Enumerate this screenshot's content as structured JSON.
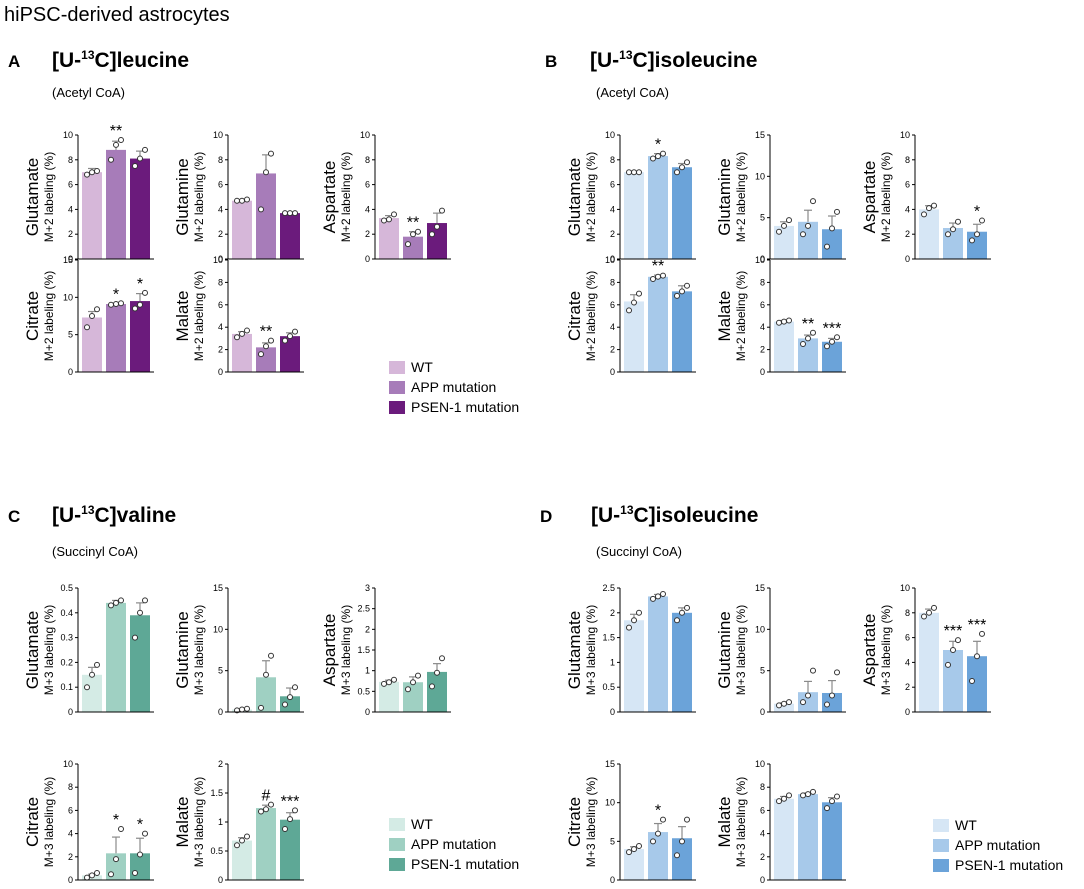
{
  "figure_title": "hiPSC-derived astrocytes",
  "groups": [
    "WT",
    "APP mutation",
    "PSEN-1 mutation"
  ],
  "palettes": {
    "purple": [
      "#d6b7d9",
      "#a77cb9",
      "#6b1b7c"
    ],
    "blue": [
      "#d6e6f5",
      "#a7c9ea",
      "#6ba3d9"
    ],
    "teal": [
      "#d4ebe5",
      "#9fd0c2",
      "#5ea896"
    ],
    "outline": "#8a8a8a"
  },
  "panels": [
    {
      "letter": "A",
      "tracer_prefix": "[U-",
      "tracer_sup": "13",
      "tracer_suffix": "C]leucine",
      "sub": "(Acetyl CoA)"
    },
    {
      "letter": "B",
      "tracer_prefix": "[U-",
      "tracer_sup": "13",
      "tracer_suffix": "C]isoleucine",
      "sub": "(Acetyl CoA)"
    },
    {
      "letter": "C",
      "tracer_prefix": "[U-",
      "tracer_sup": "13",
      "tracer_suffix": "C]valine",
      "sub": "(Succinyl CoA)"
    },
    {
      "letter": "D",
      "tracer_prefix": "[U-",
      "tracer_sup": "13",
      "tracer_suffix": "C]isoleucine",
      "sub": "(Succinyl CoA)"
    }
  ],
  "chart_data": [
    {
      "panel": "A",
      "type": "bar",
      "title": "Glutamate",
      "ylabel": "M+2 labeling (%)",
      "palette": "purple",
      "categories": [
        "WT",
        "APP mutation",
        "PSEN-1 mutation"
      ],
      "ylim": [
        0,
        10
      ],
      "yticks": [
        0,
        2,
        4,
        6,
        8,
        10
      ],
      "values": [
        7.0,
        8.8,
        8.1
      ],
      "errors": [
        0.3,
        0.7,
        0.6
      ],
      "points": [
        [
          6.8,
          7.0,
          7.1
        ],
        [
          8.0,
          9.2,
          9.6
        ],
        [
          7.5,
          8.1,
          8.8
        ]
      ],
      "annotations": [
        "",
        "**",
        ""
      ]
    },
    {
      "panel": "A",
      "type": "bar",
      "title": "Glutamine",
      "ylabel": "M+2 labeling (%)",
      "palette": "purple",
      "categories": [
        "WT",
        "APP mutation",
        "PSEN-1 mutation"
      ],
      "ylim": [
        0,
        10
      ],
      "yticks": [
        0,
        2,
        4,
        6,
        8,
        10
      ],
      "values": [
        4.7,
        6.9,
        3.7
      ],
      "errors": [
        0.05,
        1.5,
        0.05
      ],
      "points": [
        [
          4.7,
          4.7,
          4.8
        ],
        [
          4.0,
          7.0,
          8.5
        ],
        [
          3.7,
          3.7,
          3.7
        ]
      ],
      "annotations": [
        "",
        "",
        ""
      ]
    },
    {
      "panel": "A",
      "type": "bar",
      "title": "Aspartate",
      "ylabel": "M+2 labeling (%)",
      "palette": "purple",
      "categories": [
        "WT",
        "APP mutation",
        "PSEN-1 mutation"
      ],
      "ylim": [
        0,
        10
      ],
      "yticks": [
        0,
        2,
        4,
        6,
        8,
        10
      ],
      "values": [
        3.3,
        1.8,
        2.9
      ],
      "errors": [
        0.2,
        0.4,
        0.8
      ],
      "points": [
        [
          3.1,
          3.2,
          3.6
        ],
        [
          1.2,
          2.0,
          2.2
        ],
        [
          2.0,
          2.6,
          3.9
        ]
      ],
      "annotations": [
        "",
        "**",
        ""
      ]
    },
    {
      "panel": "A",
      "type": "bar",
      "title": "Citrate",
      "ylabel": "M+2 labeling (%)",
      "palette": "purple",
      "categories": [
        "WT",
        "APP mutation",
        "PSEN-1 mutation"
      ],
      "ylim": [
        0,
        15
      ],
      "yticks": [
        0,
        5,
        10,
        15
      ],
      "values": [
        7.3,
        9.1,
        9.5
      ],
      "errors": [
        0.8,
        0.1,
        1.0
      ],
      "points": [
        [
          6.0,
          7.5,
          8.4
        ],
        [
          9.0,
          9.1,
          9.2
        ],
        [
          8.5,
          9.0,
          10.6
        ]
      ],
      "annotations": [
        "",
        "*",
        "*"
      ]
    },
    {
      "panel": "A",
      "type": "bar",
      "title": "Malate",
      "ylabel": "M+2 labeling (%)",
      "palette": "purple",
      "categories": [
        "WT",
        "APP mutation",
        "PSEN-1 mutation"
      ],
      "ylim": [
        0,
        10
      ],
      "yticks": [
        0,
        2,
        4,
        6,
        8,
        10
      ],
      "values": [
        3.4,
        2.2,
        3.2
      ],
      "errors": [
        0.2,
        0.4,
        0.3
      ],
      "points": [
        [
          3.1,
          3.4,
          3.7
        ],
        [
          1.6,
          2.3,
          2.8
        ],
        [
          2.8,
          3.2,
          3.6
        ]
      ],
      "annotations": [
        "",
        "**",
        ""
      ]
    },
    {
      "panel": "B",
      "type": "bar",
      "title": "Glutamate",
      "ylabel": "M+2 labeling (%)",
      "palette": "blue",
      "categories": [
        "WT",
        "APP mutation",
        "PSEN-1 mutation"
      ],
      "ylim": [
        0,
        10
      ],
      "yticks": [
        0,
        2,
        4,
        6,
        8,
        10
      ],
      "values": [
        7.0,
        8.3,
        7.4
      ],
      "errors": [
        0.02,
        0.2,
        0.3
      ],
      "points": [
        [
          7.0,
          7.0,
          7.0
        ],
        [
          8.1,
          8.3,
          8.5
        ],
        [
          7.0,
          7.4,
          7.8
        ]
      ],
      "annotations": [
        "",
        "*",
        ""
      ]
    },
    {
      "panel": "B",
      "type": "bar",
      "title": "Glutamine",
      "ylabel": "M+2 labeling (%)",
      "palette": "blue",
      "categories": [
        "WT",
        "APP mutation",
        "PSEN-1 mutation"
      ],
      "ylim": [
        0,
        15
      ],
      "yticks": [
        0,
        5,
        10,
        15
      ],
      "values": [
        4.0,
        4.5,
        3.6
      ],
      "errors": [
        0.5,
        1.4,
        1.6
      ],
      "points": [
        [
          3.3,
          4.0,
          4.7
        ],
        [
          3.0,
          4.0,
          7.0
        ],
        [
          1.5,
          3.7,
          5.7
        ]
      ],
      "annotations": [
        "",
        "",
        ""
      ]
    },
    {
      "panel": "B",
      "type": "bar",
      "title": "Aspartate",
      "ylabel": "M+2 labeling (%)",
      "palette": "blue",
      "categories": [
        "WT",
        "APP mutation",
        "PSEN-1 mutation"
      ],
      "ylim": [
        0,
        10
      ],
      "yticks": [
        0,
        2,
        4,
        6,
        8,
        10
      ],
      "values": [
        4.0,
        2.5,
        2.2
      ],
      "errors": [
        0.3,
        0.4,
        0.6
      ],
      "points": [
        [
          3.6,
          4.1,
          4.3
        ],
        [
          2.0,
          2.4,
          3.0
        ],
        [
          1.5,
          2.0,
          3.1
        ]
      ],
      "annotations": [
        "",
        "",
        "*"
      ]
    },
    {
      "panel": "B",
      "type": "bar",
      "title": "Citrate",
      "ylabel": "M+2 labeling (%)",
      "palette": "blue",
      "categories": [
        "WT",
        "APP mutation",
        "PSEN-1 mutation"
      ],
      "ylim": [
        0,
        10
      ],
      "yticks": [
        0,
        2,
        4,
        6,
        8,
        10
      ],
      "values": [
        6.3,
        8.5,
        7.2
      ],
      "errors": [
        0.6,
        0.15,
        0.5
      ],
      "points": [
        [
          5.5,
          6.2,
          7.0
        ],
        [
          8.3,
          8.5,
          8.6
        ],
        [
          6.8,
          7.2,
          7.7
        ]
      ],
      "annotations": [
        "",
        "**",
        ""
      ]
    },
    {
      "panel": "B",
      "type": "bar",
      "title": "Malate",
      "ylabel": "M+2 labeling (%)",
      "palette": "blue",
      "categories": [
        "WT",
        "APP mutation",
        "PSEN-1 mutation"
      ],
      "ylim": [
        0,
        10
      ],
      "yticks": [
        0,
        2,
        4,
        6,
        8,
        10
      ],
      "values": [
        4.5,
        3.0,
        2.7
      ],
      "errors": [
        0.1,
        0.3,
        0.3
      ],
      "points": [
        [
          4.4,
          4.5,
          4.6
        ],
        [
          2.5,
          3.0,
          3.5
        ],
        [
          2.3,
          2.7,
          3.1
        ]
      ],
      "annotations": [
        "",
        "**",
        "***"
      ]
    },
    {
      "panel": "C",
      "type": "bar",
      "title": "Glutamate",
      "ylabel": "M+3 labeling (%)",
      "palette": "teal",
      "categories": [
        "WT",
        "APP mutation",
        "PSEN-1 mutation"
      ],
      "ylim": [
        0,
        0.5
      ],
      "yticks": [
        0,
        0.1,
        0.2,
        0.3,
        0.4,
        0.5
      ],
      "values": [
        0.15,
        0.44,
        0.39
      ],
      "errors": [
        0.03,
        0.01,
        0.05
      ],
      "points": [
        [
          0.1,
          0.15,
          0.19
        ],
        [
          0.43,
          0.44,
          0.45
        ],
        [
          0.3,
          0.4,
          0.45
        ]
      ],
      "annotations": [
        "",
        "",
        ""
      ]
    },
    {
      "panel": "C",
      "type": "bar",
      "title": "Glutamine",
      "ylabel": "M+3 labeling (%)",
      "palette": "teal",
      "categories": [
        "WT",
        "APP mutation",
        "PSEN-1 mutation"
      ],
      "ylim": [
        0,
        15
      ],
      "yticks": [
        0,
        5,
        10,
        15
      ],
      "values": [
        0.3,
        4.2,
        1.9
      ],
      "errors": [
        0.05,
        2.0,
        1.0
      ],
      "points": [
        [
          0.2,
          0.3,
          0.4
        ],
        [
          0.5,
          4.5,
          6.8
        ],
        [
          0.9,
          1.8,
          3.0
        ]
      ],
      "annotations": [
        "",
        "",
        ""
      ]
    },
    {
      "panel": "C",
      "type": "bar",
      "title": "Aspartate",
      "ylabel": "M+3 labeling (%)",
      "palette": "teal",
      "categories": [
        "WT",
        "APP mutation",
        "PSEN-1 mutation"
      ],
      "ylim": [
        0,
        3
      ],
      "yticks": [
        0,
        0.5,
        1,
        1.5,
        2,
        2.5,
        3
      ],
      "values": [
        0.73,
        0.72,
        0.97
      ],
      "errors": [
        0.04,
        0.13,
        0.2
      ],
      "points": [
        [
          0.68,
          0.72,
          0.78
        ],
        [
          0.55,
          0.72,
          0.88
        ],
        [
          0.62,
          0.95,
          1.3
        ]
      ],
      "annotations": [
        "",
        "",
        ""
      ]
    },
    {
      "panel": "C",
      "type": "bar",
      "title": "Citrate",
      "ylabel": "M+3 labeling (%)",
      "palette": "teal",
      "categories": [
        "WT",
        "APP mutation",
        "PSEN-1 mutation"
      ],
      "ylim": [
        0,
        10
      ],
      "yticks": [
        0,
        2,
        4,
        6,
        8,
        10
      ],
      "values": [
        0.4,
        2.3,
        2.3
      ],
      "errors": [
        0.1,
        1.4,
        1.3
      ],
      "points": [
        [
          0.2,
          0.4,
          0.6
        ],
        [
          0.5,
          1.8,
          4.4
        ],
        [
          0.6,
          2.2,
          4.0
        ]
      ],
      "annotations": [
        "",
        "*",
        "*"
      ]
    },
    {
      "panel": "C",
      "type": "bar",
      "title": "Malate",
      "ylabel": "M+3 labeling (%)",
      "palette": "teal",
      "categories": [
        "WT",
        "APP mutation",
        "PSEN-1 mutation"
      ],
      "ylim": [
        0,
        2
      ],
      "yticks": [
        0,
        0.5,
        1,
        1.5,
        2
      ],
      "values": [
        0.68,
        1.24,
        1.04
      ],
      "errors": [
        0.05,
        0.05,
        0.12
      ],
      "points": [
        [
          0.6,
          0.68,
          0.75
        ],
        [
          1.18,
          1.22,
          1.3
        ],
        [
          0.88,
          1.05,
          1.2
        ]
      ],
      "annotations": [
        "",
        "#",
        "***"
      ]
    },
    {
      "panel": "D",
      "type": "bar",
      "title": "Glutamate",
      "ylabel": "M+3 labeling (%)",
      "palette": "blue",
      "categories": [
        "WT",
        "APP mutation",
        "PSEN-1 mutation"
      ],
      "ylim": [
        0,
        2.5
      ],
      "yticks": [
        0,
        0.5,
        1,
        1.5,
        2,
        2.5
      ],
      "values": [
        1.85,
        2.33,
        2.0
      ],
      "errors": [
        0.12,
        0.04,
        0.1
      ],
      "points": [
        [
          1.7,
          1.85,
          2.0
        ],
        [
          2.28,
          2.33,
          2.38
        ],
        [
          1.85,
          2.0,
          2.1
        ]
      ],
      "annotations": [
        "",
        "",
        ""
      ]
    },
    {
      "panel": "D",
      "type": "bar",
      "title": "Glutamine",
      "ylabel": "M+3 labeling (%)",
      "palette": "blue",
      "categories": [
        "WT",
        "APP mutation",
        "PSEN-1 mutation"
      ],
      "ylim": [
        0,
        15
      ],
      "yticks": [
        0,
        5,
        10,
        15
      ],
      "values": [
        1.0,
        2.4,
        2.3
      ],
      "errors": [
        0.1,
        1.3,
        1.5
      ],
      "points": [
        [
          0.8,
          1.0,
          1.2
        ],
        [
          1.2,
          2.0,
          5.0
        ],
        [
          0.9,
          2.0,
          4.8
        ]
      ],
      "annotations": [
        "",
        "",
        ""
      ]
    },
    {
      "panel": "D",
      "type": "bar",
      "title": "Aspartate",
      "ylabel": "M+3 labeling (%)",
      "palette": "blue",
      "categories": [
        "WT",
        "APP mutation",
        "PSEN-1 mutation"
      ],
      "ylim": [
        0,
        10
      ],
      "yticks": [
        0,
        2,
        4,
        6,
        8,
        10
      ],
      "values": [
        8.0,
        5.0,
        4.5
      ],
      "errors": [
        0.3,
        0.7,
        1.2
      ],
      "points": [
        [
          7.7,
          8.0,
          8.4
        ],
        [
          3.8,
          5.0,
          5.8
        ],
        [
          2.5,
          4.5,
          6.3
        ]
      ],
      "annotations": [
        "",
        "***",
        "***"
      ]
    },
    {
      "panel": "D",
      "type": "bar",
      "title": "Citrate",
      "ylabel": "M+3 labeling (%)",
      "palette": "blue",
      "categories": [
        "WT",
        "APP mutation",
        "PSEN-1 mutation"
      ],
      "ylim": [
        0,
        15
      ],
      "yticks": [
        0,
        5,
        10,
        15
      ],
      "values": [
        4.0,
        6.2,
        5.4
      ],
      "errors": [
        0.3,
        1.1,
        1.5
      ],
      "points": [
        [
          3.6,
          4.0,
          4.4
        ],
        [
          5.0,
          6.0,
          7.8
        ],
        [
          3.2,
          5.0,
          7.8
        ]
      ],
      "annotations": [
        "",
        "*",
        ""
      ]
    },
    {
      "panel": "D",
      "type": "bar",
      "title": "Malate",
      "ylabel": "M+3 labeling (%)",
      "palette": "blue",
      "categories": [
        "WT",
        "APP mutation",
        "PSEN-1 mutation"
      ],
      "ylim": [
        0,
        10
      ],
      "yticks": [
        0,
        2,
        4,
        6,
        8,
        10
      ],
      "values": [
        7.0,
        7.4,
        6.7
      ],
      "errors": [
        0.2,
        0.1,
        0.4
      ],
      "points": [
        [
          6.8,
          7.0,
          7.3
        ],
        [
          7.3,
          7.4,
          7.6
        ],
        [
          6.2,
          6.8,
          7.2
        ]
      ],
      "annotations": [
        "",
        "",
        ""
      ]
    }
  ],
  "legends": [
    {
      "palette": "purple",
      "labels": [
        "WT",
        "APP mutation",
        "PSEN-1 mutation"
      ]
    },
    {
      "palette": "teal",
      "labels": [
        "WT",
        "APP mutation",
        "PSEN-1 mutation"
      ]
    },
    {
      "palette": "blue",
      "labels": [
        "WT",
        "APP mutation",
        "PSEN-1 mutation"
      ]
    }
  ]
}
